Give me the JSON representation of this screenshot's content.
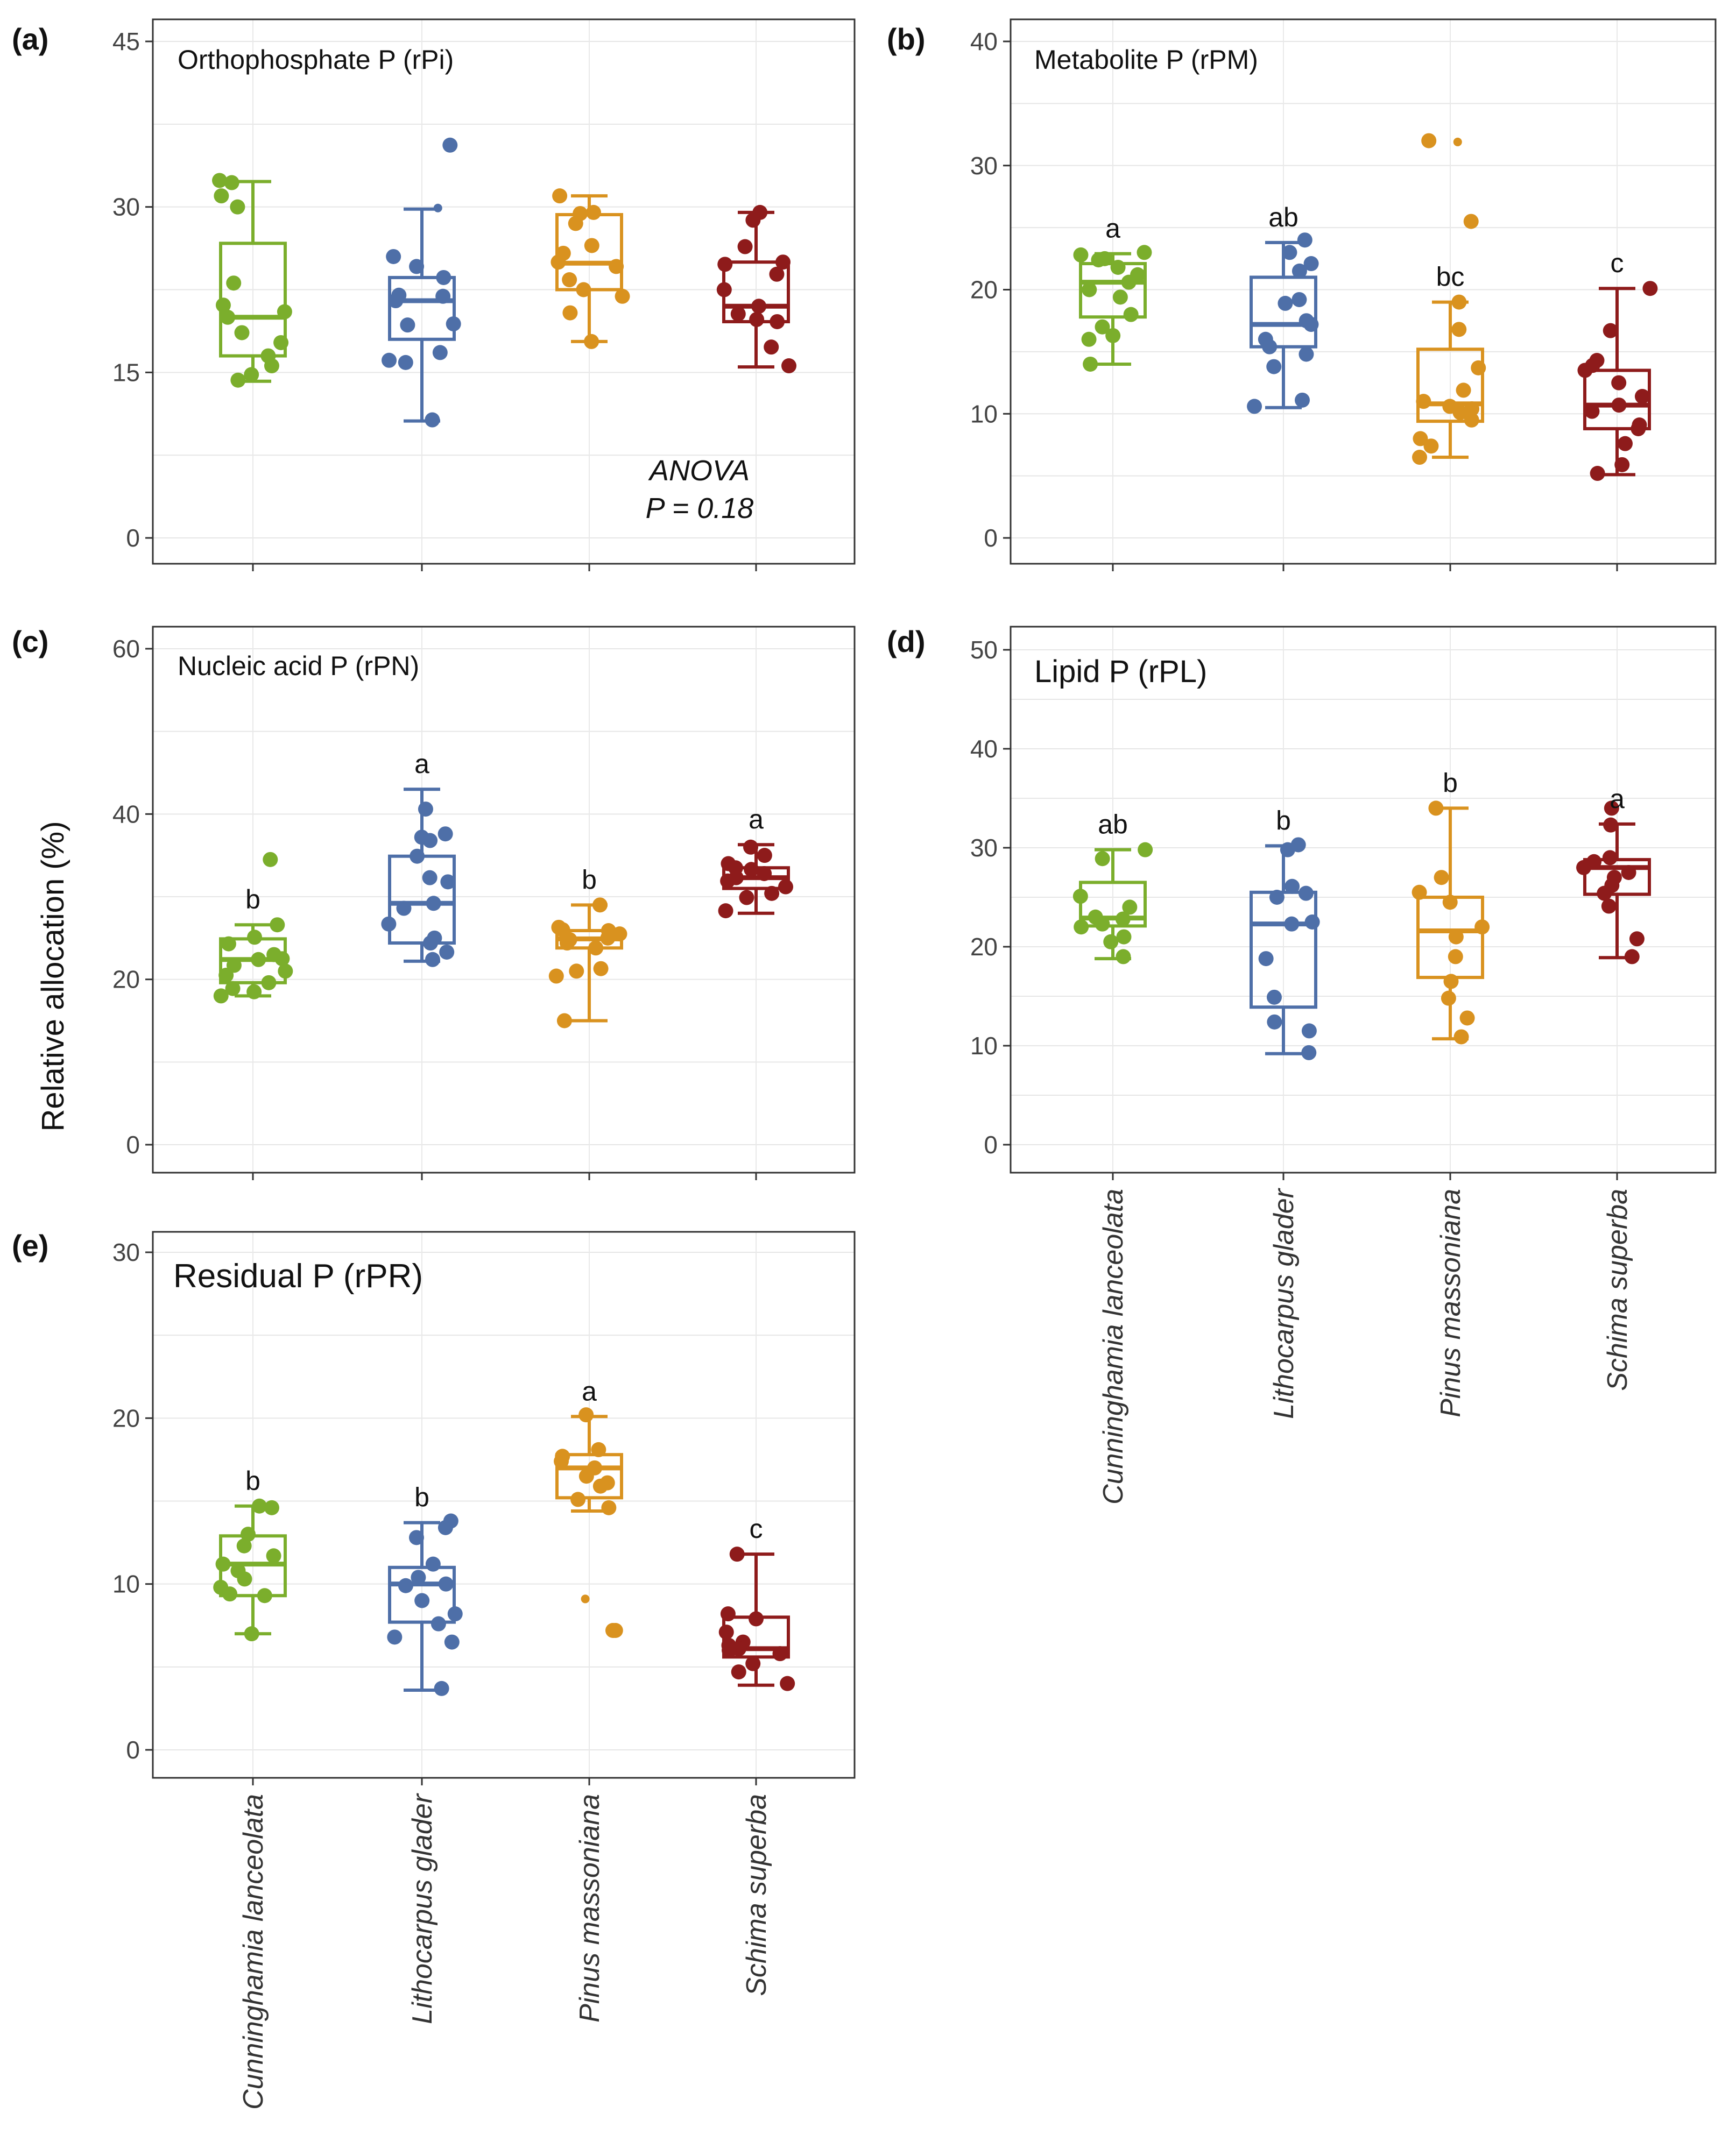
{
  "figure": {
    "y_axis_label": "Relative allocation (%)",
    "colors": {
      "Cunninghamia lanceolata": "#7BAE2C",
      "Lithocarpus glader": "#4E6FA8",
      "Pinus massoniana": "#D9921F",
      "Schima superba": "#8E1B1B"
    },
    "categories": [
      "Cunninghamia lanceolata",
      "Lithocarpus glader",
      "Pinus massoniana",
      "Schima superba"
    ]
  },
  "chart_data": [
    {
      "id": "a",
      "panel_label": "(a)",
      "type": "box",
      "title": "Orthophosphate P (rPi)",
      "ylim": [
        0,
        45
      ],
      "yticks": [
        0,
        15,
        30,
        45
      ],
      "letters": [
        "",
        "",
        "",
        ""
      ],
      "annotation": [
        "ANOVA",
        "P = 0.18"
      ],
      "series": [
        {
          "name": "Cunninghamia lanceolata",
          "min": 14.2,
          "q1": 16.5,
          "median": 20.0,
          "q3": 26.7,
          "max": 32.3,
          "points": [
            32.4,
            32.2,
            31.0,
            30.0,
            23.1,
            21.1,
            20.5,
            20.0,
            18.6,
            17.7,
            16.5,
            15.6,
            14.8,
            14.3
          ]
        },
        {
          "name": "Lithocarpus glader",
          "min": 10.6,
          "q1": 18.0,
          "median": 21.5,
          "q3": 23.6,
          "max": 29.8,
          "points": [
            35.6,
            29.9,
            25.5,
            24.6,
            23.6,
            22.0,
            21.9,
            21.5,
            19.4,
            19.3,
            16.8,
            16.1,
            15.9,
            10.7
          ]
        },
        {
          "name": "Pinus massoniana",
          "min": 17.8,
          "q1": 22.5,
          "median": 24.9,
          "q3": 29.3,
          "max": 31.0,
          "points": [
            31.0,
            29.5,
            29.4,
            28.5,
            26.5,
            25.8,
            25.0,
            24.6,
            23.4,
            22.5,
            21.9,
            20.4,
            17.8
          ]
        },
        {
          "name": "Schima superba",
          "min": 15.5,
          "q1": 19.6,
          "median": 21.0,
          "q3": 25.0,
          "max": 29.5,
          "points": [
            29.5,
            28.8,
            26.4,
            25.0,
            24.8,
            23.9,
            22.5,
            21.0,
            20.3,
            19.8,
            19.6,
            17.3,
            15.6
          ]
        }
      ]
    },
    {
      "id": "b",
      "panel_label": "(b)",
      "type": "box",
      "title": "Metabolite P (rPM)",
      "ylim": [
        0,
        40
      ],
      "yticks": [
        0,
        10,
        20,
        30,
        40
      ],
      "letters": [
        "a",
        "ab",
        "bc",
        "c"
      ],
      "annotation": [],
      "series": [
        {
          "name": "Cunninghamia lanceolata",
          "min": 14.0,
          "q1": 17.8,
          "median": 20.6,
          "q3": 22.1,
          "max": 22.9,
          "points": [
            23.0,
            22.8,
            22.5,
            22.4,
            21.8,
            21.2,
            20.6,
            20.0,
            19.4,
            18.0,
            17.0,
            16.3,
            16.0,
            14.0
          ]
        },
        {
          "name": "Lithocarpus glader",
          "min": 10.5,
          "q1": 15.4,
          "median": 17.2,
          "q3": 21.0,
          "max": 23.8,
          "points": [
            24.0,
            23.0,
            22.1,
            21.5,
            19.2,
            18.9,
            17.5,
            17.2,
            16.0,
            15.4,
            14.8,
            13.8,
            11.1,
            10.6
          ]
        },
        {
          "name": "Pinus massoniana",
          "min": 6.5,
          "q1": 9.4,
          "median": 10.8,
          "q3": 15.2,
          "max": 19.0,
          "points": [
            32.0,
            31.9,
            25.5,
            19.0,
            16.8,
            13.7,
            11.9,
            11.0,
            10.6,
            10.4,
            10.1,
            9.5,
            8.0,
            7.4,
            6.5
          ]
        },
        {
          "name": "Schima superba",
          "min": 5.1,
          "q1": 8.8,
          "median": 10.7,
          "q3": 13.5,
          "max": 20.1,
          "points": [
            20.1,
            16.7,
            14.3,
            13.9,
            13.5,
            12.5,
            11.4,
            10.7,
            10.2,
            9.1,
            8.8,
            7.6,
            5.9,
            5.2
          ]
        }
      ]
    },
    {
      "id": "c",
      "panel_label": "(c)",
      "type": "box",
      "title": "Nucleic acid P (rPN)",
      "ylim": [
        0,
        60
      ],
      "yticks": [
        0,
        20,
        40,
        60
      ],
      "letters": [
        "b",
        "a",
        "b",
        "a"
      ],
      "annotation": [],
      "series": [
        {
          "name": "Cunninghamia lanceolata",
          "min": 18.0,
          "q1": 19.6,
          "median": 22.4,
          "q3": 24.9,
          "max": 26.6,
          "points": [
            34.5,
            26.6,
            25.1,
            24.3,
            23.0,
            22.5,
            22.4,
            21.7,
            21.0,
            20.5,
            19.6,
            18.9,
            18.5,
            18.0
          ]
        },
        {
          "name": "Lithocarpus glader",
          "min": 22.2,
          "q1": 24.4,
          "median": 29.2,
          "q3": 34.9,
          "max": 43.0,
          "points": [
            40.6,
            37.6,
            37.2,
            36.8,
            34.9,
            32.3,
            31.8,
            29.2,
            28.6,
            26.7,
            25.0,
            24.4,
            23.3,
            22.4
          ]
        },
        {
          "name": "Pinus massoniana",
          "min": 15.0,
          "q1": 23.8,
          "median": 24.9,
          "q3": 25.9,
          "max": 29.0,
          "points": [
            29.0,
            26.3,
            26.0,
            25.9,
            25.5,
            25.0,
            24.8,
            24.4,
            23.8,
            21.3,
            21.0,
            20.4,
            15.0
          ]
        },
        {
          "name": "Schima superba",
          "min": 28.0,
          "q1": 31.0,
          "median": 32.3,
          "q3": 33.5,
          "max": 36.3,
          "points": [
            36.0,
            35.0,
            34.0,
            33.5,
            33.3,
            32.8,
            32.3,
            31.9,
            31.2,
            30.4,
            29.9,
            28.3
          ]
        }
      ]
    },
    {
      "id": "d",
      "panel_label": "(d)",
      "type": "box",
      "title": "Lipid P (rPL)",
      "ylim": [
        0,
        50
      ],
      "yticks": [
        0,
        10,
        20,
        30,
        40,
        50
      ],
      "letters": [
        "ab",
        "b",
        "b",
        "a"
      ],
      "annotation": [],
      "series": [
        {
          "name": "Cunninghamia lanceolata",
          "min": 18.8,
          "q1": 22.1,
          "median": 22.9,
          "q3": 26.5,
          "max": 29.8,
          "points": [
            29.8,
            28.9,
            25.1,
            24.0,
            23.0,
            22.8,
            22.3,
            22.0,
            21.0,
            20.5,
            19.0
          ]
        },
        {
          "name": "Lithocarpus glader",
          "min": 9.2,
          "q1": 13.9,
          "median": 22.3,
          "q3": 25.5,
          "max": 30.2,
          "points": [
            30.3,
            29.8,
            26.1,
            25.4,
            25.0,
            22.5,
            22.3,
            18.8,
            14.9,
            12.4,
            11.5,
            9.3
          ]
        },
        {
          "name": "Pinus massoniana",
          "min": 10.7,
          "q1": 16.9,
          "median": 21.6,
          "q3": 25.0,
          "max": 34.0,
          "points": [
            34.0,
            27.0,
            25.5,
            24.5,
            22.0,
            21.0,
            19.0,
            16.5,
            14.8,
            12.8,
            10.9
          ]
        },
        {
          "name": "Schima superba",
          "min": 18.9,
          "q1": 25.3,
          "median": 28.0,
          "q3": 28.8,
          "max": 32.4,
          "points": [
            34.0,
            32.3,
            29.0,
            28.6,
            28.0,
            27.5,
            27.0,
            26.2,
            25.4,
            24.1,
            20.8,
            19.0
          ]
        }
      ]
    },
    {
      "id": "e",
      "panel_label": "(e)",
      "type": "box",
      "title": "Residual P (rPR)",
      "ylim": [
        0,
        30
      ],
      "yticks": [
        0,
        10,
        20,
        30
      ],
      "letters": [
        "b",
        "b",
        "a",
        "c"
      ],
      "annotation": [],
      "series": [
        {
          "name": "Cunninghamia lanceolata",
          "min": 7.0,
          "q1": 9.3,
          "median": 11.2,
          "q3": 12.9,
          "max": 14.7,
          "points": [
            14.7,
            14.6,
            13.0,
            12.3,
            11.7,
            11.2,
            10.8,
            10.3,
            9.8,
            9.4,
            9.3,
            7.0
          ]
        },
        {
          "name": "Lithocarpus glader",
          "min": 3.6,
          "q1": 7.7,
          "median": 10.0,
          "q3": 11.0,
          "max": 13.7,
          "points": [
            13.8,
            13.4,
            12.8,
            11.2,
            10.4,
            10.0,
            9.9,
            9.0,
            8.2,
            7.6,
            6.8,
            6.5,
            3.7
          ]
        },
        {
          "name": "Pinus massoniana",
          "min": 14.4,
          "q1": 15.2,
          "median": 17.0,
          "q3": 17.8,
          "max": 20.1,
          "points": [
            20.2,
            18.1,
            17.7,
            17.4,
            17.0,
            16.5,
            16.1,
            15.9,
            15.1,
            14.6,
            9.1,
            7.2,
            7.2
          ]
        },
        {
          "name": "Schima superba",
          "min": 3.9,
          "q1": 5.6,
          "median": 6.1,
          "q3": 8.0,
          "max": 11.8,
          "points": [
            11.8,
            8.2,
            7.9,
            7.1,
            6.5,
            6.3,
            6.1,
            6.0,
            5.8,
            5.2,
            4.7,
            4.0
          ]
        }
      ]
    }
  ]
}
